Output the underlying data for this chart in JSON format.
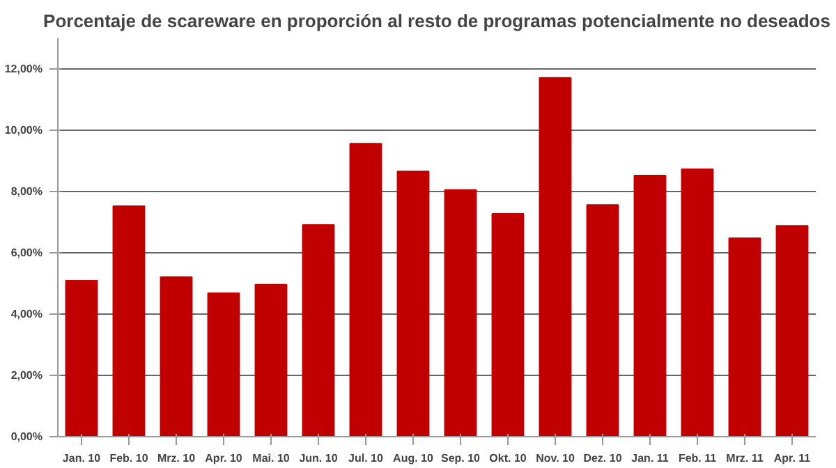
{
  "chart_data": {
    "type": "bar",
    "title": "Porcentaje de scareware en proporción al resto de programas potencialmente no deseados",
    "categories": [
      "Jan. 10",
      "Feb. 10",
      "Mrz. 10",
      "Apr. 10",
      "Mai. 10",
      "Jun. 10",
      "Jul. 10",
      "Aug. 10",
      "Sep. 10",
      "Okt. 10",
      "Nov. 10",
      "Dez. 10",
      "Jan. 11",
      "Feb. 11",
      "Mrz. 11",
      "Apr. 11"
    ],
    "values": [
      5.09,
      7.52,
      5.21,
      4.68,
      4.96,
      6.91,
      9.56,
      8.66,
      8.05,
      7.27,
      11.71,
      7.56,
      8.52,
      8.73,
      6.48,
      6.88
    ],
    "color": "#c00000",
    "ylim": [
      0,
      13
    ],
    "yticks": [
      {
        "value": 0,
        "label": "0,00%"
      },
      {
        "value": 2,
        "label": "2,00%"
      },
      {
        "value": 4,
        "label": "4,00%"
      },
      {
        "value": 6,
        "label": "6,00%"
      },
      {
        "value": 8,
        "label": "8,00%"
      },
      {
        "value": 10,
        "label": "10,00%"
      },
      {
        "value": 12,
        "label": "12,00%"
      }
    ],
    "grid": "y"
  }
}
